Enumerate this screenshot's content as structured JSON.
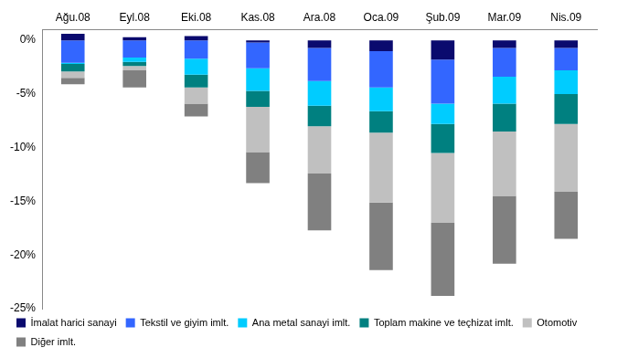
{
  "chart_data": {
    "type": "bar",
    "stacked": true,
    "grid": false,
    "legend": "bottom",
    "categories": [
      "Ağu.08",
      "Eyl.08",
      "Eki.08",
      "Kas.08",
      "Ara.08",
      "Oca.09",
      "Şub.09",
      "Mar.09",
      "Nis.09"
    ],
    "ylim": [
      -25,
      1
    ],
    "yticks": [
      {
        "value": -25,
        "label": "-25%"
      },
      {
        "value": -20,
        "label": "-20%"
      },
      {
        "value": -15,
        "label": "-15%"
      },
      {
        "value": -10,
        "label": "-10%"
      },
      {
        "value": -5,
        "label": "-5%"
      },
      {
        "value": 0,
        "label": "0%"
      }
    ],
    "series": [
      {
        "name": "İmalat harici sanayi",
        "color": "#0a0a6e",
        "values": [
          0.6,
          0.3,
          0.4,
          -0.2,
          -0.7,
          -1.0,
          -1.8,
          -0.7,
          -0.7
        ]
      },
      {
        "name": "Tekstil ve giyim imlt.",
        "color": "#3366ff",
        "values": [
          -2.1,
          -1.6,
          -1.7,
          -2.4,
          -3.1,
          -3.4,
          -4.1,
          -2.7,
          -2.1
        ]
      },
      {
        "name": "Ana metal sanayi imlt.",
        "color": "#00ccff",
        "values": [
          -0.1,
          -0.4,
          -1.5,
          -2.1,
          -2.3,
          -2.2,
          -1.9,
          -2.5,
          -2.2
        ]
      },
      {
        "name": "Toplam makine ve teçhizat imlt.",
        "color": "#008080",
        "values": [
          -0.7,
          -0.4,
          -1.2,
          -1.5,
          -1.9,
          -2.0,
          -2.7,
          -2.6,
          -2.8
        ]
      },
      {
        "name": "Otomotiv",
        "color": "#c0c0c0",
        "values": [
          -0.6,
          -0.4,
          -1.5,
          -4.2,
          -4.4,
          -6.5,
          -6.5,
          -6.0,
          -6.3
        ]
      },
      {
        "name": "Diğer imlt.",
        "color": "#808080",
        "values": [
          -0.6,
          -1.6,
          -1.2,
          -2.9,
          -5.3,
          -6.3,
          -6.8,
          -6.3,
          -4.4
        ]
      }
    ]
  }
}
